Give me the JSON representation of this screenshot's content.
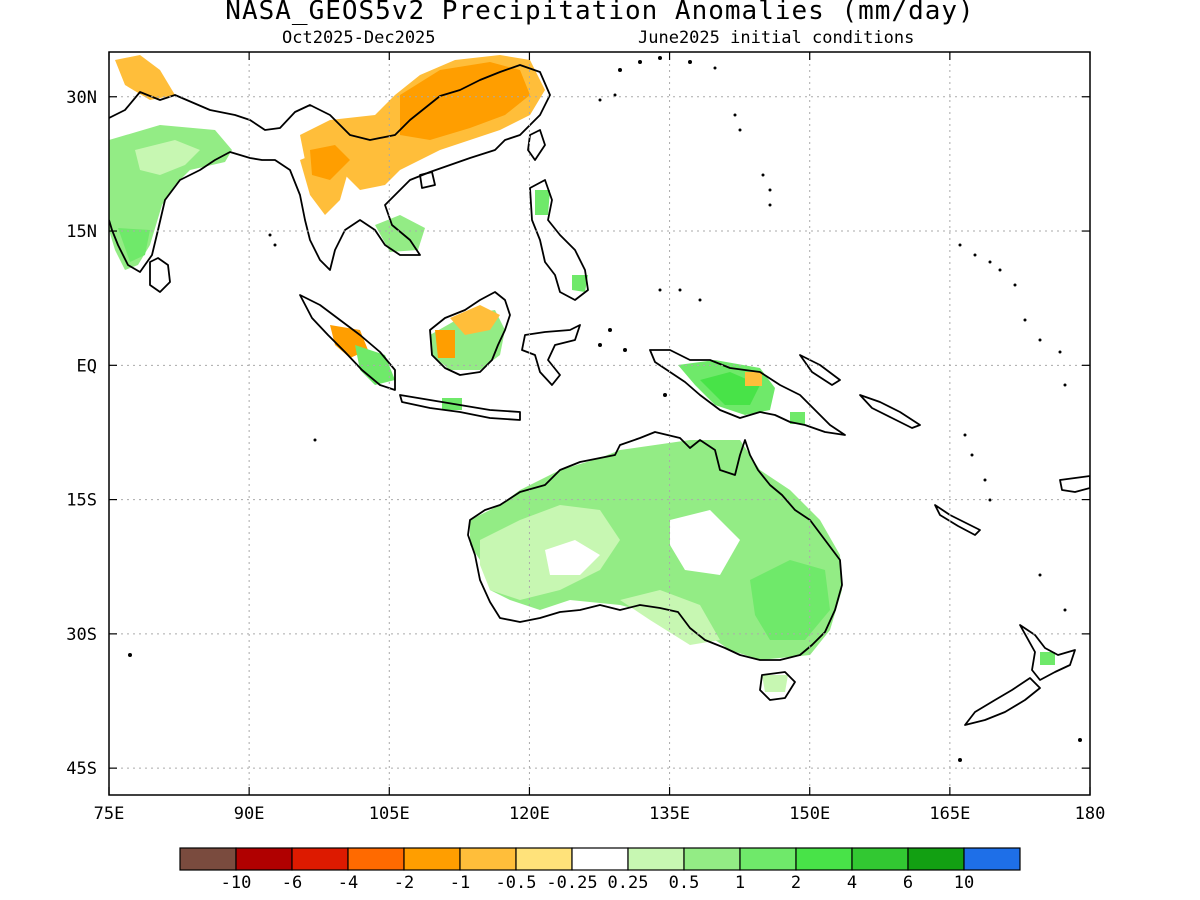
{
  "title": "NASA_GEOS5v2 Precipitation Anomalies (mm/day)",
  "subtitle_left": "Oct2025-Dec2025",
  "subtitle_right": "June2025 initial conditions",
  "map": {
    "lon_range": [
      75,
      180
    ],
    "lat_range": [
      -48,
      35
    ],
    "x_ticks": [
      {
        "value": 75,
        "label": "75E"
      },
      {
        "value": 90,
        "label": "90E"
      },
      {
        "value": 105,
        "label": "105E"
      },
      {
        "value": 120,
        "label": "120E"
      },
      {
        "value": 135,
        "label": "135E"
      },
      {
        "value": 150,
        "label": "150E"
      },
      {
        "value": 165,
        "label": "165E"
      },
      {
        "value": 180,
        "label": "180"
      }
    ],
    "y_ticks": [
      {
        "value": 30,
        "label": "30N"
      },
      {
        "value": 15,
        "label": "15N"
      },
      {
        "value": 0,
        "label": "EQ"
      },
      {
        "value": -15,
        "label": "15S"
      },
      {
        "value": -30,
        "label": "30S"
      },
      {
        "value": -45,
        "label": "45S"
      }
    ],
    "grid": "dotted"
  },
  "colorbar": {
    "colors": [
      "#7a4b3e",
      "#b00000",
      "#dd1a00",
      "#ff6a00",
      "#ff9e00",
      "#ffbe3a",
      "#ffe27a",
      "#ffffff",
      "#c7f7b2",
      "#93ec85",
      "#6fe96a",
      "#48e348",
      "#32c832",
      "#12a012",
      "#1e6fe8"
    ],
    "labels": [
      "-10",
      "-6",
      "-4",
      "-2",
      "-1",
      "-0.5",
      "-0.25",
      "0.25",
      "0.5",
      "1",
      "2",
      "4",
      "6",
      "10"
    ]
  },
  "anomaly_regions": [
    {
      "region": "India",
      "lon": [
        75,
        87
      ],
      "lat": [
        10,
        26
      ],
      "value": 0.7,
      "color": "#93ec85"
    },
    {
      "region": "Southern China",
      "lon": [
        100,
        122
      ],
      "lat": [
        21,
        33
      ],
      "value": -1.2,
      "color": "#ff9e00"
    },
    {
      "region": "Indochina",
      "lon": [
        96,
        106
      ],
      "lat": [
        15,
        24
      ],
      "value": -0.6,
      "color": "#ffbe3a"
    },
    {
      "region": "Borneo",
      "lon": [
        109,
        119
      ],
      "lat": [
        -4,
        4
      ],
      "value": 0.6,
      "color": "#93ec85"
    },
    {
      "region": "New Guinea",
      "lon": [
        138,
        149
      ],
      "lat": [
        -9,
        -3
      ],
      "value": 1.5,
      "color": "#6fe96a"
    },
    {
      "region": "Northern Australia",
      "lon": [
        130,
        147
      ],
      "lat": [
        -27,
        -13
      ],
      "value": 0.6,
      "color": "#93ec85"
    },
    {
      "region": "Eastern Australia",
      "lon": [
        141,
        153
      ],
      "lat": [
        -38,
        -24
      ],
      "value": 0.7,
      "color": "#93ec85"
    },
    {
      "region": "Western Australia",
      "lon": [
        114,
        130
      ],
      "lat": [
        -34,
        -22
      ],
      "value": 0.35,
      "color": "#c7f7b2"
    }
  ]
}
